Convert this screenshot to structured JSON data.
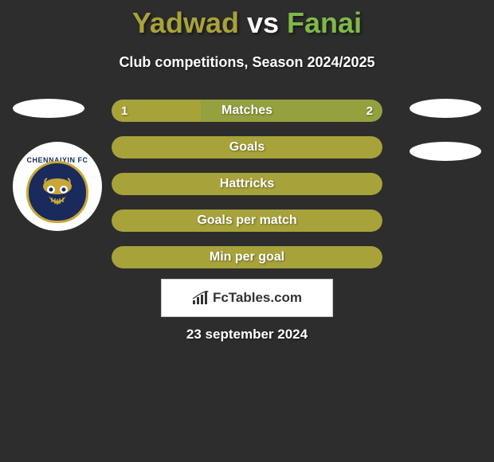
{
  "title": {
    "player1": "Yadwad",
    "vs": "vs",
    "player2": "Fanai",
    "color_player1": "#a8a23a",
    "color_vs": "#ffffff",
    "color_player2": "#7fb84a"
  },
  "subtitle": "Club competitions, Season 2024/2025",
  "badge": {
    "arc_text": "CHENNAIYIN FC"
  },
  "bars": [
    {
      "label": "Matches",
      "left_value": "1",
      "right_value": "2",
      "left_width_pct": 33,
      "bg_color": "#95a03f",
      "left_color": "#a8a23a"
    },
    {
      "label": "Goals",
      "left_value": "",
      "right_value": "",
      "left_width_pct": 0,
      "bg_color": "#a8a23a",
      "left_color": "#a8a23a"
    },
    {
      "label": "Hattricks",
      "left_value": "",
      "right_value": "",
      "left_width_pct": 0,
      "bg_color": "#a8a23a",
      "left_color": "#a8a23a"
    },
    {
      "label": "Goals per match",
      "left_value": "",
      "right_value": "",
      "left_width_pct": 0,
      "bg_color": "#a8a23a",
      "left_color": "#a8a23a"
    },
    {
      "label": "Min per goal",
      "left_value": "",
      "right_value": "",
      "left_width_pct": 0,
      "bg_color": "#a8a23a",
      "left_color": "#a8a23a"
    }
  ],
  "brand": "FcTables.com",
  "date": "23 september 2024",
  "colors": {
    "background": "#2d2d2d",
    "text_white": "#ffffff"
  }
}
